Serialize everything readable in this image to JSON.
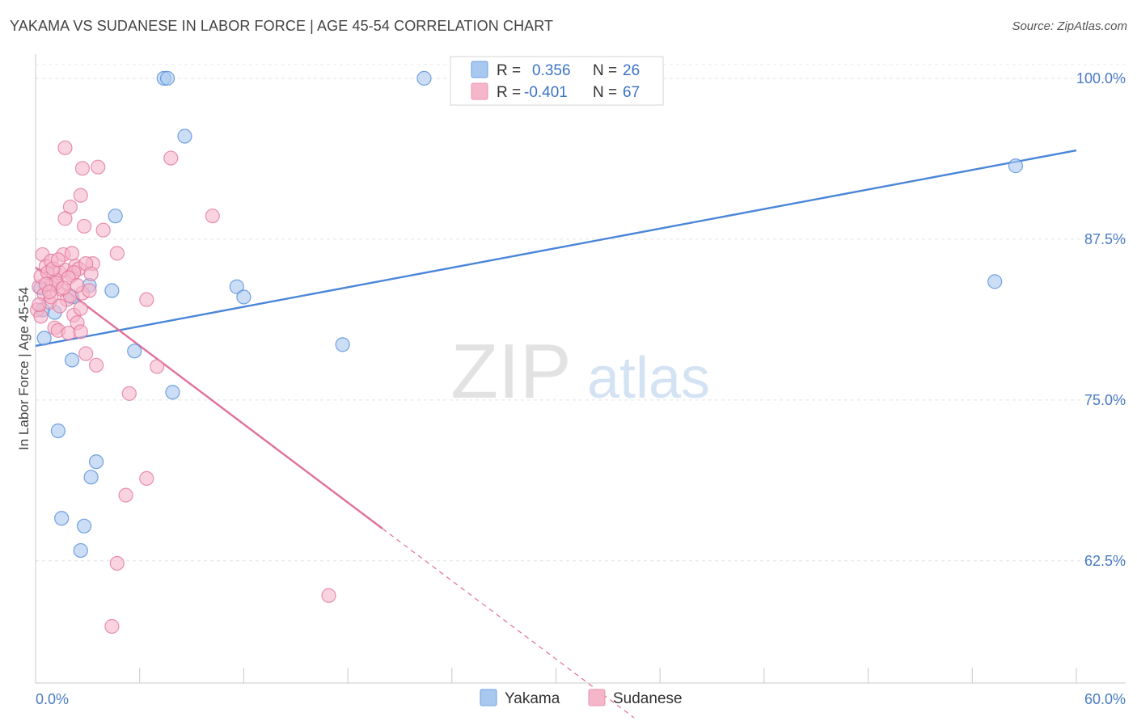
{
  "header": {
    "title": "YAKAMA VS SUDANESE IN LABOR FORCE | AGE 45-54 CORRELATION CHART",
    "source": "Source: ZipAtlas.com"
  },
  "watermark": {
    "zip": "ZIP",
    "atlas": "atlas"
  },
  "legend_box": {
    "rows": [
      {
        "r_label": "R =",
        "r_value": "0.356",
        "n_label": "N =",
        "n_value": "26",
        "color": "#a8c8f0"
      },
      {
        "r_label": "R =",
        "r_value": "-0.401",
        "n_label": "N =",
        "n_value": "67",
        "color": "#f5b6c9"
      }
    ]
  },
  "chart_data": {
    "type": "scatter",
    "title": "YAKAMA VS SUDANESE IN LABOR FORCE | AGE 45-54 CORRELATION CHART",
    "xlabel": "",
    "ylabel": "In Labor Force | Age 45-54",
    "xlim": [
      0,
      60
    ],
    "ylim": [
      53,
      101.5
    ],
    "x_tick_labels": [
      "0.0%",
      "60.0%"
    ],
    "y_ticks": [
      62.5,
      75.0,
      87.5,
      100.0
    ],
    "y_tick_labels": [
      "62.5%",
      "75.0%",
      "87.5%",
      "100.0%"
    ],
    "grid": true,
    "legend_position": "bottom-center",
    "series": [
      {
        "name": "Yakama",
        "color": "#4a86d8",
        "fill": "#a8c8f0",
        "R": 0.356,
        "N": 26,
        "points": [
          [
            0.3,
            83.7
          ],
          [
            0.5,
            79.8
          ],
          [
            1.1,
            81.8
          ],
          [
            1.3,
            72.6
          ],
          [
            1.5,
            65.8
          ],
          [
            2.1,
            83.0
          ],
          [
            2.1,
            78.1
          ],
          [
            2.8,
            65.2
          ],
          [
            2.6,
            63.3
          ],
          [
            3.1,
            83.9
          ],
          [
            3.2,
            69.0
          ],
          [
            3.5,
            70.2
          ],
          [
            4.4,
            83.5
          ],
          [
            4.6,
            89.3
          ],
          [
            5.7,
            78.8
          ],
          [
            7.4,
            100.0
          ],
          [
            7.6,
            100.0
          ],
          [
            7.9,
            75.6
          ],
          [
            8.6,
            95.5
          ],
          [
            11.6,
            83.8
          ],
          [
            12.0,
            83.0
          ],
          [
            17.7,
            79.3
          ],
          [
            22.4,
            100.0
          ],
          [
            55.3,
            84.2
          ],
          [
            56.5,
            93.2
          ],
          [
            0.4,
            82.0
          ]
        ],
        "trend": {
          "x": [
            0,
            60
          ],
          "y": [
            79.2,
            94.4
          ],
          "dashed_from": null
        }
      },
      {
        "name": "Sudanese",
        "color": "#e0709a",
        "fill": "#f5b6c9",
        "R": -0.401,
        "N": 67,
        "points": [
          [
            0.1,
            82.0
          ],
          [
            0.2,
            83.8
          ],
          [
            0.3,
            84.6
          ],
          [
            0.4,
            86.3
          ],
          [
            0.5,
            83.2
          ],
          [
            0.6,
            85.4
          ],
          [
            0.7,
            84.9
          ],
          [
            0.8,
            82.6
          ],
          [
            0.9,
            85.8
          ],
          [
            1.0,
            83.9
          ],
          [
            1.1,
            80.6
          ],
          [
            1.2,
            84.3
          ],
          [
            1.3,
            80.4
          ],
          [
            1.4,
            84.9
          ],
          [
            1.5,
            83.6
          ],
          [
            1.6,
            86.3
          ],
          [
            1.7,
            85.1
          ],
          [
            1.8,
            82.8
          ],
          [
            1.9,
            80.2
          ],
          [
            2.0,
            83.1
          ],
          [
            2.1,
            84.7
          ],
          [
            2.2,
            81.6
          ],
          [
            2.3,
            85.4
          ],
          [
            2.4,
            81.0
          ],
          [
            2.5,
            85.2
          ],
          [
            2.6,
            80.3
          ],
          [
            2.7,
            83.3
          ],
          [
            2.8,
            88.5
          ],
          [
            2.9,
            78.6
          ],
          [
            3.1,
            83.5
          ],
          [
            3.3,
            85.6
          ],
          [
            3.5,
            77.7
          ],
          [
            1.7,
            94.6
          ],
          [
            2.7,
            93.0
          ],
          [
            3.6,
            93.1
          ],
          [
            2.6,
            90.9
          ],
          [
            2.0,
            90.0
          ],
          [
            1.7,
            89.1
          ],
          [
            3.9,
            88.2
          ],
          [
            4.7,
            86.4
          ],
          [
            6.4,
            82.8
          ],
          [
            5.4,
            75.5
          ],
          [
            7.0,
            77.6
          ],
          [
            7.8,
            93.8
          ],
          [
            10.2,
            89.3
          ],
          [
            5.2,
            67.6
          ],
          [
            6.4,
            68.9
          ],
          [
            4.7,
            62.3
          ],
          [
            4.4,
            57.4
          ],
          [
            16.9,
            59.8
          ],
          [
            0.3,
            81.5
          ],
          [
            0.9,
            83.0
          ],
          [
            1.2,
            84.1
          ],
          [
            1.4,
            82.3
          ],
          [
            2.2,
            84.9
          ],
          [
            2.9,
            85.6
          ],
          [
            1.9,
            84.5
          ],
          [
            1.0,
            85.2
          ],
          [
            0.6,
            84.0
          ],
          [
            0.2,
            82.4
          ],
          [
            2.4,
            83.9
          ],
          [
            1.6,
            83.7
          ],
          [
            2.1,
            86.4
          ],
          [
            3.2,
            84.8
          ],
          [
            1.3,
            85.9
          ],
          [
            0.8,
            83.4
          ],
          [
            2.6,
            82.1
          ]
        ],
        "trend": {
          "x": [
            0,
            20,
            34.5
          ],
          "y": [
            85.3,
            65.0,
            50.3
          ],
          "dashed_from": 20
        }
      }
    ]
  }
}
